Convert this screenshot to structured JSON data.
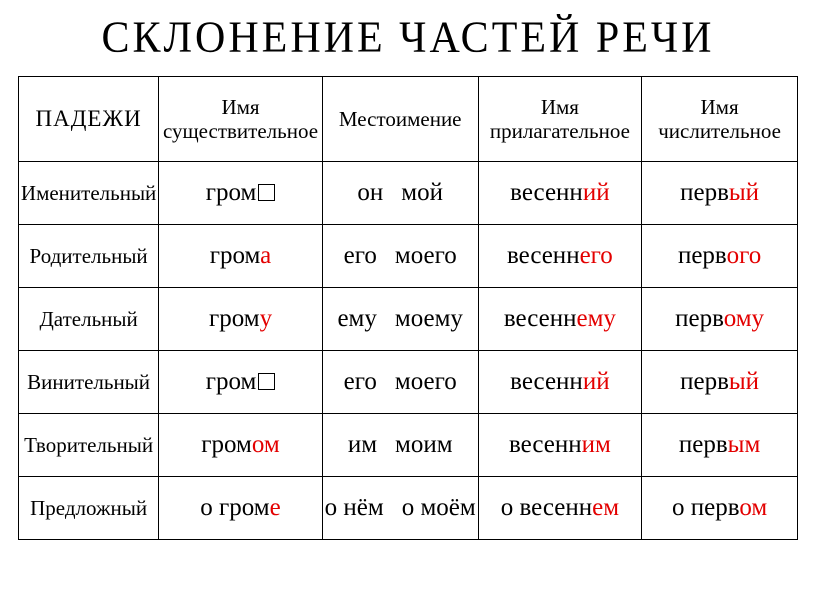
{
  "title": "СКЛОНЕНИЕ ЧАСТЕЙ РЕЧИ",
  "colors": {
    "ending": "#e30000",
    "text": "#000000",
    "bg": "#ffffff",
    "border": "#000000"
  },
  "columns": {
    "cases": "ПАДЕЖИ",
    "noun": "Имя существительное",
    "pronoun": "Местоимение",
    "adjective": "Имя прилагательное",
    "numeral": "Имя числительное"
  },
  "col_widths_pct": [
    18,
    21,
    20,
    21,
    20
  ],
  "fontsize": {
    "title": 42,
    "header": 21,
    "body": 25,
    "case": 21
  },
  "rows": [
    {
      "case": "Именительный",
      "noun": {
        "stem": "гром",
        "end": "",
        "zero": true
      },
      "pronoun": {
        "p1": "он",
        "p2": "мой"
      },
      "adjective": {
        "stem": "весенн",
        "end": "ий"
      },
      "numeral": {
        "stem": "перв",
        "end": "ый"
      }
    },
    {
      "case": "Родительный",
      "noun": {
        "stem": "гром",
        "end": "а",
        "zero": false
      },
      "pronoun": {
        "p1": "его",
        "p2": "моего"
      },
      "adjective": {
        "stem": "весенн",
        "end": "его"
      },
      "numeral": {
        "stem": "перв",
        "end": "ого"
      }
    },
    {
      "case": "Дательный",
      "noun": {
        "stem": "гром",
        "end": "у",
        "zero": false
      },
      "pronoun": {
        "p1": "ему",
        "p2": "моему"
      },
      "adjective": {
        "stem": "весенн",
        "end": "ему"
      },
      "numeral": {
        "stem": "перв",
        "end": "ому"
      }
    },
    {
      "case": "Винительный",
      "noun": {
        "stem": "гром",
        "end": "",
        "zero": true
      },
      "pronoun": {
        "p1": "его",
        "p2": "моего"
      },
      "adjective": {
        "stem": "весенн",
        "end": "ий"
      },
      "numeral": {
        "stem": "перв",
        "end": "ый"
      }
    },
    {
      "case": "Творительный",
      "noun": {
        "stem": "гром",
        "end": "ом",
        "zero": false
      },
      "pronoun": {
        "p1": "им",
        "p2": "моим"
      },
      "adjective": {
        "stem": "весенн",
        "end": "им"
      },
      "numeral": {
        "stem": "перв",
        "end": "ым"
      }
    },
    {
      "case": "Предложный",
      "noun": {
        "pre": "о ",
        "stem": "гром",
        "end": "е",
        "zero": false
      },
      "pronoun": {
        "p1": "о нём",
        "p2": "о моём"
      },
      "adjective": {
        "pre": "о ",
        "stem": "весенн",
        "end": "ем"
      },
      "numeral": {
        "pre": "о ",
        "stem": "перв",
        "end": "ом"
      }
    }
  ]
}
